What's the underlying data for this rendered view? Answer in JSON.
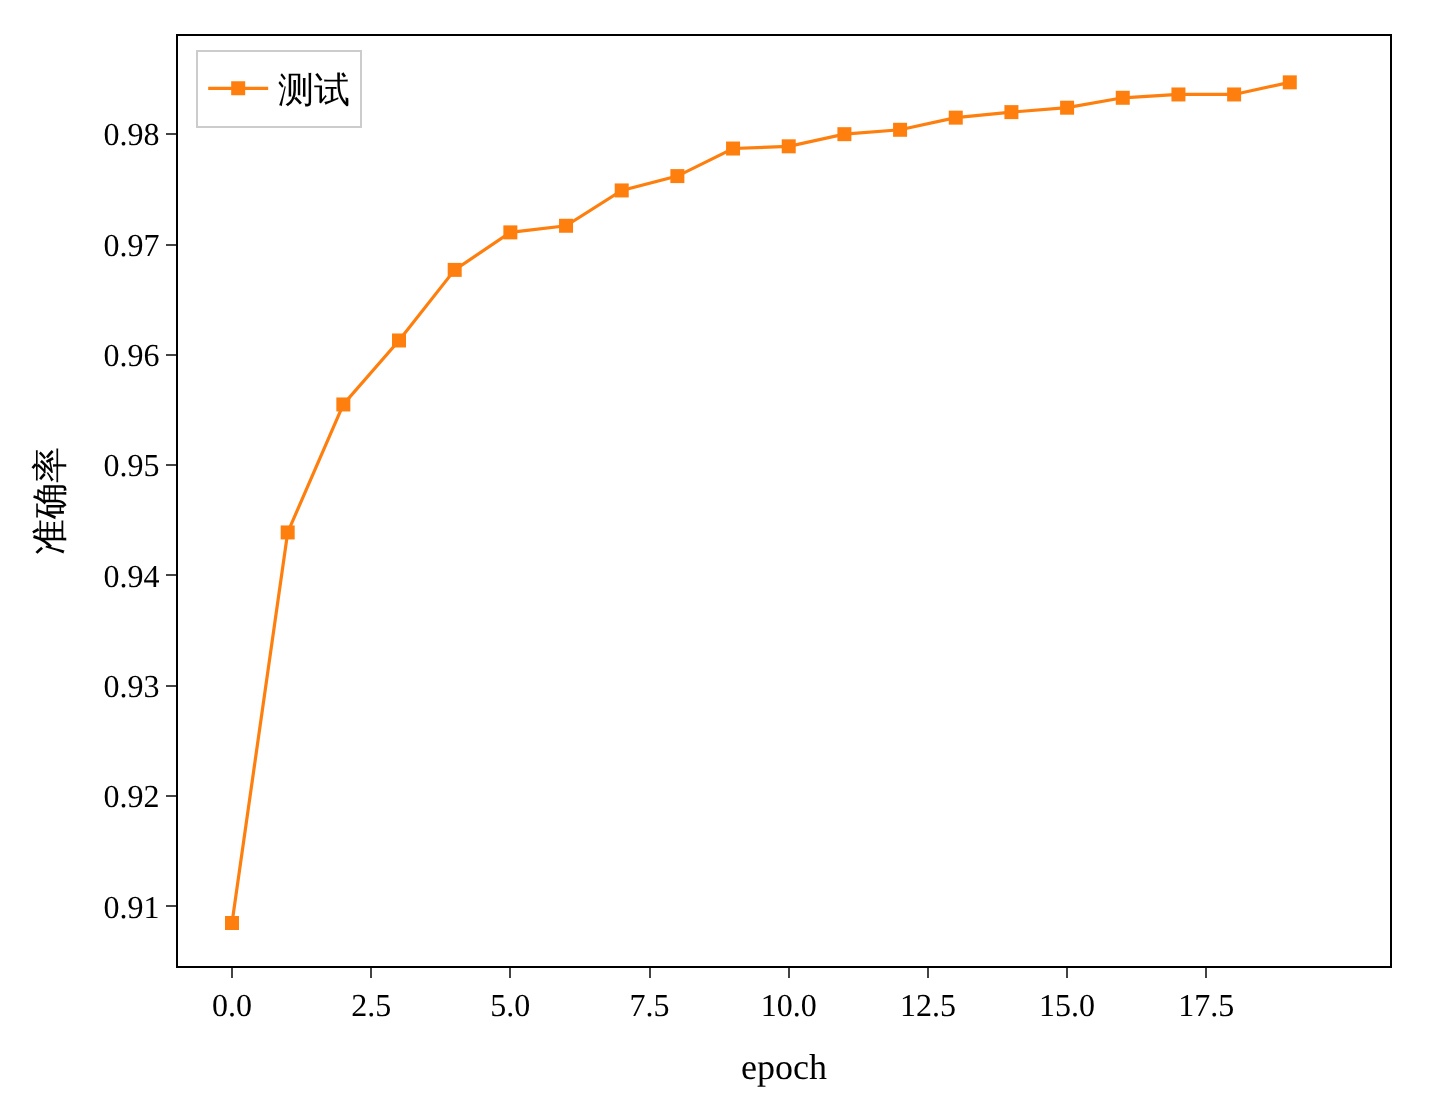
{
  "chart_data": {
    "type": "line",
    "xlabel": "epoch",
    "ylabel": "准确率",
    "x": [
      0,
      1,
      2,
      3,
      4,
      5,
      6,
      7,
      8,
      9,
      10,
      11,
      12,
      13,
      14,
      15,
      16,
      17,
      18,
      19
    ],
    "series": [
      {
        "name": "测试",
        "color": "#ff7f0e",
        "values": [
          0.9085,
          0.9439,
          0.9555,
          0.9613,
          0.9677,
          0.9711,
          0.9717,
          0.9749,
          0.9762,
          0.9787,
          0.9789,
          0.98,
          0.9804,
          0.9815,
          0.982,
          0.9824,
          0.9833,
          0.9836,
          0.9836,
          0.9847
        ]
      }
    ],
    "xlim": [
      -0.97,
      20.8
    ],
    "ylim": [
      0.9046,
      0.9889
    ],
    "xticks": [
      {
        "value": 0,
        "label": "0.0"
      },
      {
        "value": 2.5,
        "label": "2.5"
      },
      {
        "value": 5,
        "label": "5.0"
      },
      {
        "value": 7.5,
        "label": "7.5"
      },
      {
        "value": 10,
        "label": "10.0"
      },
      {
        "value": 12.5,
        "label": "12.5"
      },
      {
        "value": 15,
        "label": "15.0"
      },
      {
        "value": 17.5,
        "label": "17.5"
      }
    ],
    "yticks": [
      0.91,
      0.92,
      0.93,
      0.94,
      0.95,
      0.96,
      0.97,
      0.98
    ],
    "legend": "top left",
    "marker": "square",
    "line_style": "solid"
  }
}
